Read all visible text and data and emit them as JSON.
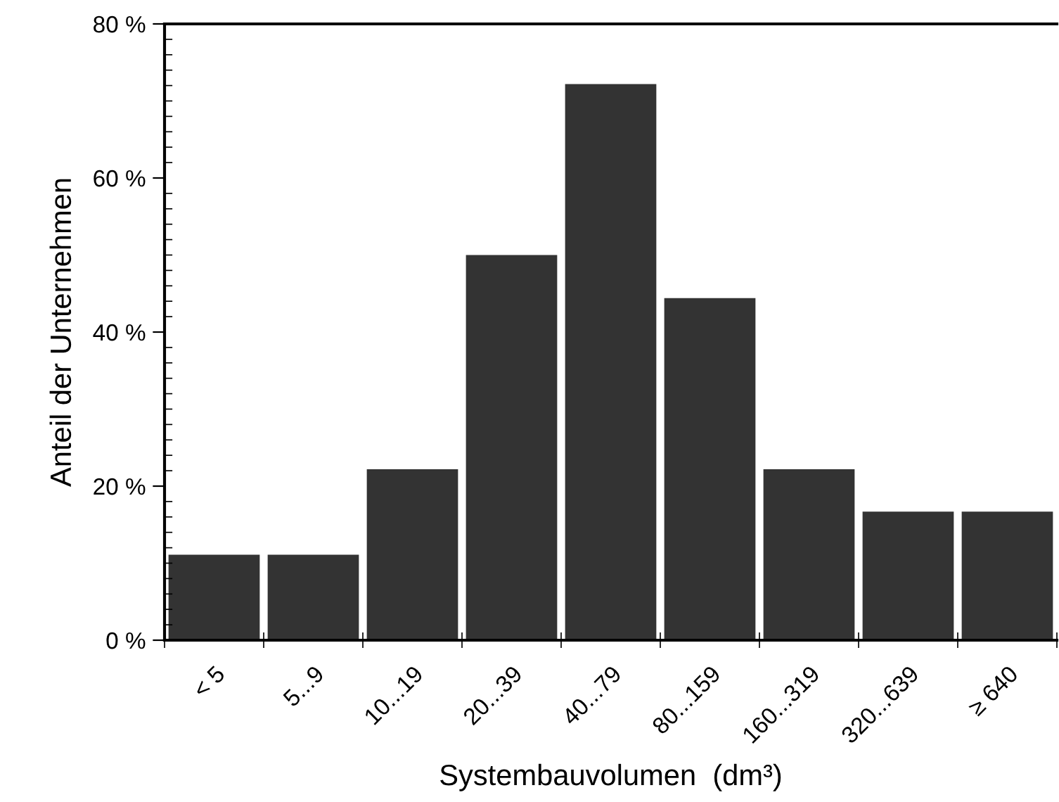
{
  "chart_data": {
    "type": "bar",
    "xlabel": "Systembauvolumen  (dm³)",
    "ylabel": "Anteil der Unternehmen",
    "categories": [
      "< 5",
      "5...9",
      "10...19",
      "20...39",
      "40...79",
      "80...159",
      "160...319",
      "320...639",
      "≥ 640"
    ],
    "values": [
      11.1,
      11.1,
      22.2,
      50,
      72.2,
      44.4,
      22.2,
      16.7,
      16.7
    ],
    "color": "#333333",
    "ylim": [
      0,
      80
    ],
    "yticks": [
      {
        "value": 0,
        "label": "0 %"
      },
      {
        "value": 20,
        "label": "20 %"
      },
      {
        "value": 40,
        "label": "40 %"
      },
      {
        "value": 60,
        "label": "60 %"
      },
      {
        "value": 80,
        "label": "80 %"
      }
    ],
    "grid": false
  }
}
